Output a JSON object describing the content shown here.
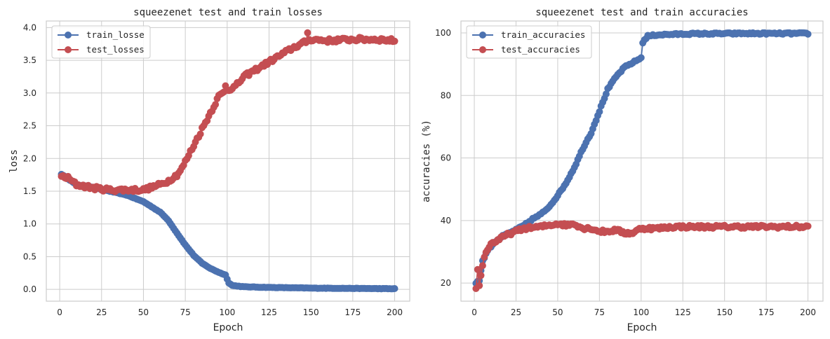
{
  "chart_data": [
    {
      "type": "line",
      "title": "squeezenet test and train losses",
      "xlabel": "Epoch",
      "ylabel": "loss",
      "xlim": [
        -8,
        209
      ],
      "ylim": [
        -0.18,
        4.1
      ],
      "xticks": [
        0,
        25,
        50,
        75,
        100,
        125,
        150,
        175,
        200
      ],
      "xtick_labels": [
        "0",
        "25",
        "50",
        "75",
        "100",
        "125",
        "150",
        "175",
        "200"
      ],
      "yticks": [
        0.0,
        0.5,
        1.0,
        1.5,
        2.0,
        2.5,
        3.0,
        3.5,
        4.0
      ],
      "ytick_labels": [
        "0.0",
        "0.5",
        "1.0",
        "1.5",
        "2.0",
        "2.5",
        "3.0",
        "3.5",
        "4.0"
      ],
      "grid": true,
      "legend_loc": "upper-left",
      "series": [
        {
          "name": "train_losse",
          "color": "#4c72b0",
          "anchors": [
            [
              1,
              1.76
            ],
            [
              10,
              1.6
            ],
            [
              20,
              1.56
            ],
            [
              30,
              1.5
            ],
            [
              40,
              1.44
            ],
            [
              50,
              1.34
            ],
            [
              60,
              1.18
            ],
            [
              65,
              1.05
            ],
            [
              70,
              0.86
            ],
            [
              75,
              0.68
            ],
            [
              80,
              0.52
            ],
            [
              85,
              0.4
            ],
            [
              90,
              0.32
            ],
            [
              95,
              0.26
            ],
            [
              99,
              0.22
            ],
            [
              101,
              0.1
            ],
            [
              103,
              0.06
            ],
            [
              110,
              0.04
            ],
            [
              125,
              0.03
            ],
            [
              150,
              0.02
            ],
            [
              175,
              0.015
            ],
            [
              200,
              0.01
            ]
          ],
          "noise": 0.003
        },
        {
          "name": "test_losses",
          "color": "#c44e52",
          "anchors": [
            [
              1,
              1.73
            ],
            [
              5,
              1.7
            ],
            [
              10,
              1.6
            ],
            [
              20,
              1.55
            ],
            [
              30,
              1.52
            ],
            [
              40,
              1.52
            ],
            [
              50,
              1.52
            ],
            [
              55,
              1.56
            ],
            [
              60,
              1.6
            ],
            [
              65,
              1.66
            ],
            [
              70,
              1.75
            ],
            [
              73,
              1.85
            ],
            [
              76,
              2.0
            ],
            [
              80,
              2.2
            ],
            [
              85,
              2.45
            ],
            [
              90,
              2.7
            ],
            [
              95,
              2.95
            ],
            [
              100,
              3.05
            ],
            [
              105,
              3.1
            ],
            [
              110,
              3.25
            ],
            [
              120,
              3.4
            ],
            [
              130,
              3.55
            ],
            [
              140,
              3.7
            ],
            [
              147,
              3.78
            ],
            [
              150,
              3.82
            ],
            [
              160,
              3.8
            ],
            [
              175,
              3.82
            ],
            [
              190,
              3.82
            ],
            [
              200,
              3.8
            ]
          ],
          "noise": 0.03,
          "outliers": [
            [
              148,
              3.92
            ],
            [
              99,
              3.11
            ]
          ]
        }
      ]
    },
    {
      "type": "line",
      "title": "squeezenet test and train accuracies",
      "xlabel": "Epoch",
      "ylabel": "accuracies (%)",
      "xlim": [
        -8,
        209
      ],
      "ylim": [
        14.2,
        103.8
      ],
      "xticks": [
        0,
        25,
        50,
        75,
        100,
        125,
        150,
        175,
        200
      ],
      "xtick_labels": [
        "0",
        "25",
        "50",
        "75",
        "100",
        "125",
        "150",
        "175",
        "200"
      ],
      "yticks": [
        20,
        40,
        60,
        80,
        100
      ],
      "ytick_labels": [
        "20",
        "40",
        "60",
        "80",
        "100"
      ],
      "grid": true,
      "legend_loc": "upper-left",
      "series": [
        {
          "name": "train_accuracies",
          "color": "#4c72b0",
          "anchors": [
            [
              1,
              20.0
            ],
            [
              3,
              21.0
            ],
            [
              5,
              27.0
            ],
            [
              8,
              30.5
            ],
            [
              12,
              33.0
            ],
            [
              17,
              35.0
            ],
            [
              25,
              37.0
            ],
            [
              30,
              38.5
            ],
            [
              35,
              40.5
            ],
            [
              40,
              42.0
            ],
            [
              45,
              44.5
            ],
            [
              50,
              48.0
            ],
            [
              55,
              52.0
            ],
            [
              60,
              57.0
            ],
            [
              65,
              63.0
            ],
            [
              70,
              68.0
            ],
            [
              75,
              75.0
            ],
            [
              80,
              82.0
            ],
            [
              85,
              86.0
            ],
            [
              90,
              89.0
            ],
            [
              95,
              90.5
            ],
            [
              100,
              92.0
            ],
            [
              101,
              97.0
            ],
            [
              104,
              99.0
            ],
            [
              110,
              99.4
            ],
            [
              130,
              99.7
            ],
            [
              160,
              99.8
            ],
            [
              200,
              99.8
            ]
          ],
          "noise": 0.25
        },
        {
          "name": "test_accuracies",
          "color": "#c44e52",
          "anchors": [
            [
              1,
              18.0
            ],
            [
              2,
              24.5
            ],
            [
              3,
              19.0
            ],
            [
              5,
              26.0
            ],
            [
              7,
              30.0
            ],
            [
              10,
              32.5
            ],
            [
              15,
              34.0
            ],
            [
              20,
              35.5
            ],
            [
              25,
              36.5
            ],
            [
              30,
              37.5
            ],
            [
              40,
              38.0
            ],
            [
              50,
              39.0
            ],
            [
              55,
              38.5
            ],
            [
              60,
              39.0
            ],
            [
              65,
              37.5
            ],
            [
              70,
              37.5
            ],
            [
              75,
              36.5
            ],
            [
              80,
              36.5
            ],
            [
              85,
              37.0
            ],
            [
              90,
              36.0
            ],
            [
              95,
              36.0
            ],
            [
              100,
              37.5
            ],
            [
              110,
              37.5
            ],
            [
              120,
              38.0
            ],
            [
              150,
              38.0
            ],
            [
              200,
              38.0
            ]
          ],
          "noise": 0.5
        }
      ]
    }
  ]
}
